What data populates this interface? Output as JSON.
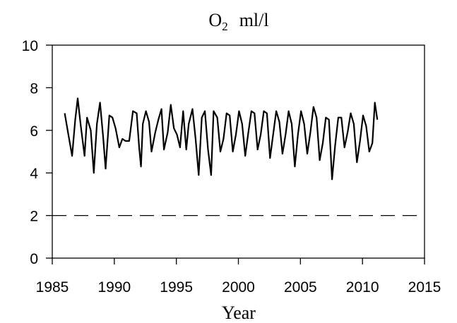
{
  "chart_data": {
    "type": "line",
    "title": {
      "main": "O",
      "subscript": "2",
      "unit": "ml/l"
    },
    "xlabel": "Year",
    "ylabel": "",
    "xlim": [
      1985,
      2015
    ],
    "ylim": [
      0,
      10
    ],
    "xticks": [
      1985,
      1990,
      1995,
      2000,
      2005,
      2010,
      2015
    ],
    "yticks": [
      0,
      2,
      4,
      6,
      8,
      10
    ],
    "reference_line": {
      "y": 2,
      "style": "dashed"
    },
    "grid": false,
    "series": [
      {
        "x": [
          1986.0,
          1986.3,
          1986.6,
          1986.85,
          1987.05,
          1987.3,
          1987.6,
          1987.8,
          1988.1,
          1988.35,
          1988.6,
          1988.85,
          1989.1,
          1989.3,
          1989.6,
          1989.85,
          1990.1,
          1990.4,
          1990.65,
          1990.9,
          1991.2,
          1991.5,
          1991.8,
          1992.0,
          1992.15,
          1992.3,
          1992.55,
          1992.8,
          1993.0,
          1993.3,
          1993.55,
          1993.8,
          1994.0,
          1994.3,
          1994.55,
          1994.8,
          1995.05,
          1995.3,
          1995.55,
          1995.8,
          1996.0,
          1996.3,
          1996.55,
          1996.8,
          1997.05,
          1997.3,
          1997.55,
          1997.8,
          1998.0,
          1998.3,
          1998.55,
          1998.8,
          1999.05,
          1999.3,
          1999.55,
          1999.8,
          2000.05,
          2000.3,
          2000.55,
          2000.8,
          2001.05,
          2001.3,
          2001.55,
          2001.8,
          2002.05,
          2002.3,
          2002.55,
          2002.8,
          2003.05,
          2003.3,
          2003.55,
          2003.8,
          2004.05,
          2004.3,
          2004.55,
          2004.8,
          2005.05,
          2005.3,
          2005.55,
          2005.8,
          2006.05,
          2006.3,
          2006.55,
          2006.8,
          2007.05,
          2007.3,
          2007.55,
          2007.8,
          2008.05,
          2008.3,
          2008.55,
          2008.8,
          2009.05,
          2009.3,
          2009.55,
          2009.8,
          2010.05,
          2010.3,
          2010.55,
          2010.8,
          2011.0,
          2011.2
        ],
        "values": [
          6.8,
          5.8,
          4.8,
          6.5,
          7.5,
          6.2,
          4.8,
          6.6,
          6.0,
          4.0,
          6.3,
          7.3,
          5.7,
          4.2,
          6.7,
          6.6,
          6.1,
          5.2,
          5.6,
          5.5,
          5.5,
          6.9,
          6.8,
          5.2,
          4.3,
          6.3,
          6.9,
          6.4,
          5.0,
          5.9,
          6.5,
          7.0,
          5.1,
          5.9,
          7.2,
          6.1,
          5.8,
          5.2,
          6.9,
          5.1,
          6.3,
          7.0,
          5.6,
          3.9,
          6.6,
          6.9,
          5.1,
          3.9,
          6.9,
          6.6,
          5.0,
          5.6,
          6.8,
          6.7,
          5.0,
          5.8,
          6.9,
          6.3,
          4.8,
          5.9,
          6.9,
          6.8,
          5.1,
          5.8,
          6.9,
          6.8,
          4.7,
          5.8,
          6.9,
          6.4,
          4.9,
          5.8,
          6.9,
          6.3,
          4.3,
          5.8,
          6.9,
          6.3,
          4.9,
          5.9,
          7.1,
          6.6,
          4.6,
          5.4,
          6.6,
          6.5,
          3.7,
          5.3,
          6.6,
          6.6,
          5.2,
          5.9,
          6.8,
          6.3,
          4.5,
          5.5,
          6.7,
          6.2,
          5.0,
          5.4,
          7.3,
          6.5
        ]
      }
    ]
  }
}
